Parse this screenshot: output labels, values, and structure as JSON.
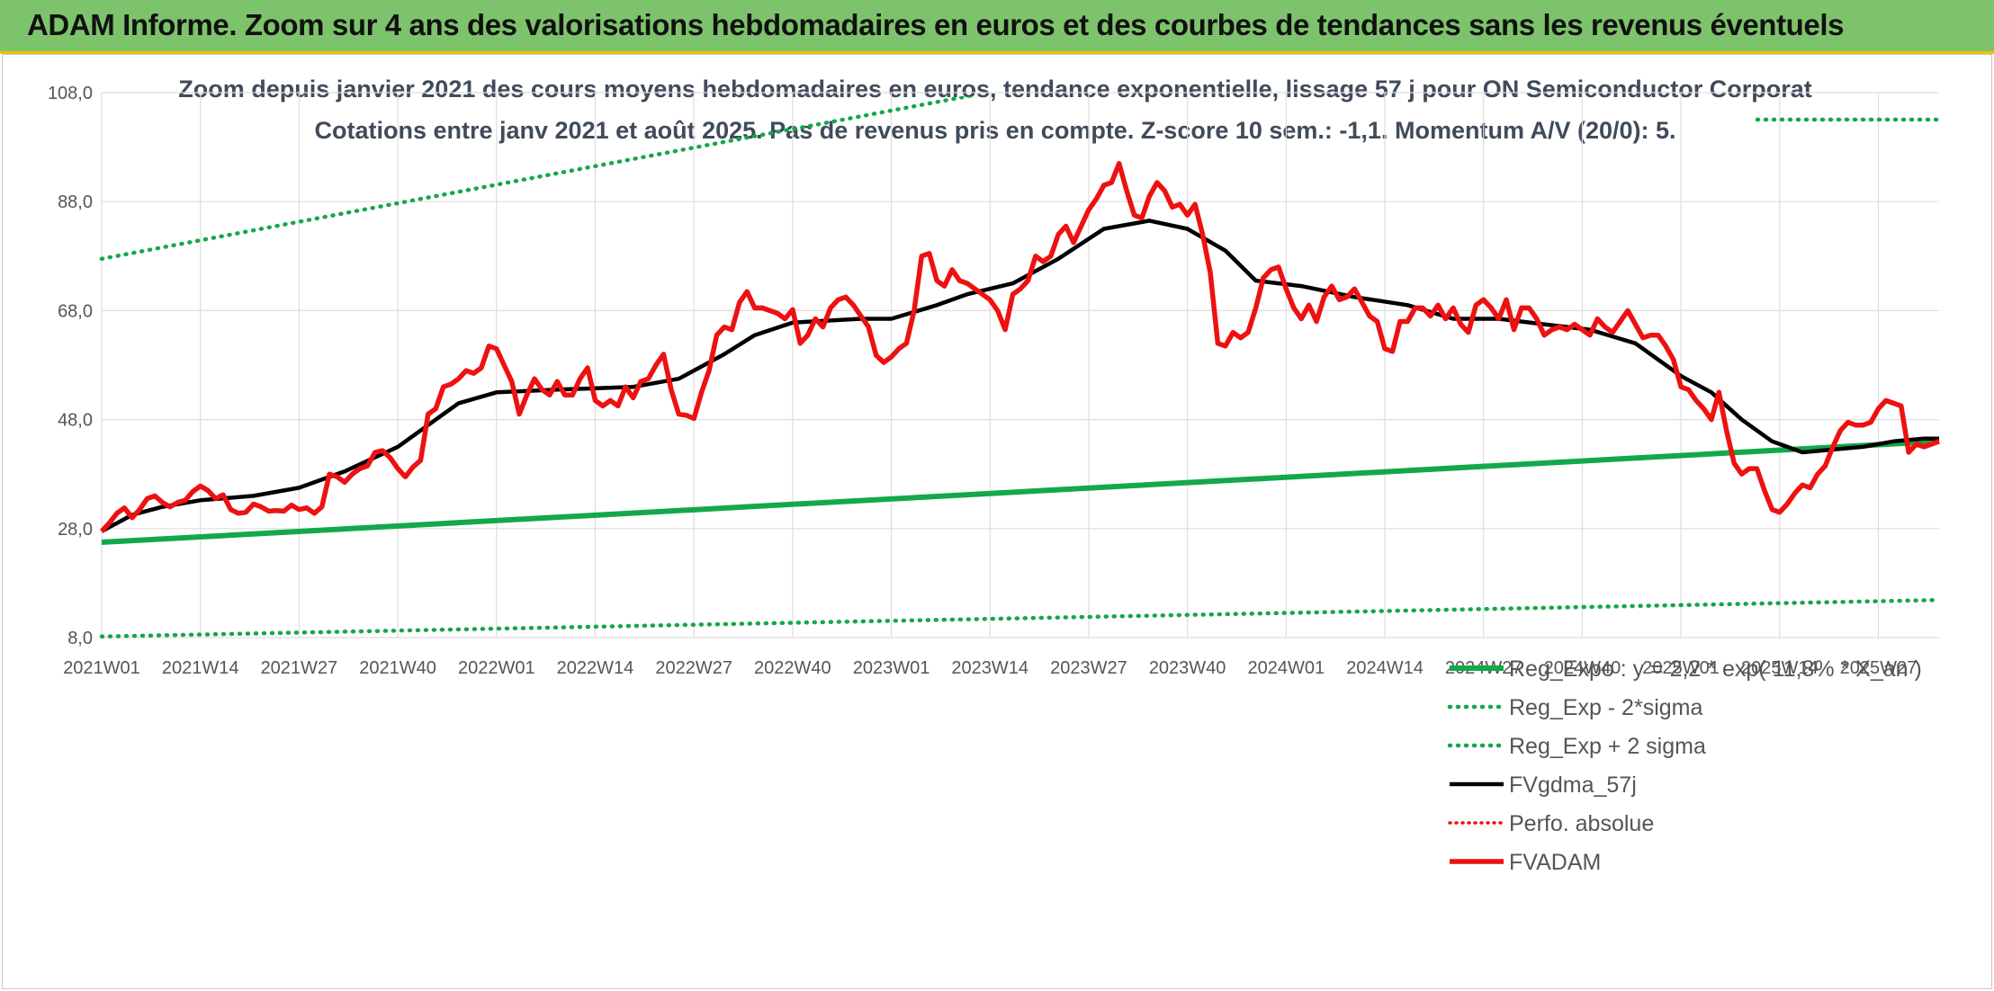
{
  "header": {
    "title": "ADAM Informe. Zoom sur 4 ans des valorisations hebdomadaires en euros et des courbes de tendances sans les revenus éventuels"
  },
  "colors": {
    "header_bg": "#7dc36b",
    "header_border": "#f2c200",
    "trend_green": "#13a84a",
    "fvadam_red": "#ee1111",
    "fvgdma_black": "#000000",
    "perfo_red": "#ee1111",
    "grid": "#dddddd"
  },
  "chart_data": {
    "type": "line",
    "title": "Zoom depuis janvier 2021 des cours moyens hebdomadaires en euros, tendance exponentielle, lissage 57 j pour ON Semiconductor Corporat",
    "subtitle": "Cotations entre janv 2021 et août 2025. Pas de revenus pris en compte. Z-score 10 sem.: -1,1. Momentum A/V (20/0): 5.",
    "ylim": [
      8,
      108
    ],
    "yticks": [
      "108,0",
      "88,0",
      "68,0",
      "48,0",
      "28,0",
      "8,0"
    ],
    "ytick_values": [
      108,
      88,
      68,
      48,
      28,
      8
    ],
    "x_count": 243,
    "xticks": [
      "2021W01",
      "2021W14",
      "2021W27",
      "2021W40",
      "2022W01",
      "2022W14",
      "2022W27",
      "2022W40",
      "2023W01",
      "2023W14",
      "2023W27",
      "2023W40",
      "2024W01",
      "2024W14",
      "2024W27",
      "2024W40",
      "2025W01",
      "2025W14",
      "2025W27"
    ],
    "xtick_index": [
      0,
      13,
      26,
      39,
      52,
      65,
      78,
      91,
      104,
      117,
      130,
      143,
      156,
      169,
      182,
      195,
      208,
      221,
      234
    ],
    "grid": true,
    "legend_position": "bottom-right",
    "series": [
      {
        "name": "Reg_Expo : y = 2,2 * exp( 11,8% * X_an )",
        "kind": "trend",
        "points": [
          [
            0,
            25.5
          ],
          [
            242,
            44.0
          ]
        ]
      },
      {
        "name": "Reg_Exp - 2*sigma",
        "kind": "band_low",
        "points": [
          [
            0,
            8.2
          ],
          [
            242,
            14.9
          ]
        ]
      },
      {
        "name": "Reg_Exp + 2 sigma",
        "kind": "band_high",
        "points": [
          [
            0,
            77.5
          ],
          [
            242,
            140.8
          ]
        ]
      },
      {
        "name": "FVgdma_57j",
        "kind": "smooth",
        "points": [
          [
            0,
            27.5
          ],
          [
            4,
            30.5
          ],
          [
            8,
            32
          ],
          [
            13,
            33.2
          ],
          [
            20,
            34
          ],
          [
            26,
            35.5
          ],
          [
            32,
            38.5
          ],
          [
            39,
            43
          ],
          [
            44,
            48
          ],
          [
            47,
            51
          ],
          [
            52,
            53
          ],
          [
            60,
            53.5
          ],
          [
            70,
            54
          ],
          [
            76,
            55.5
          ],
          [
            82,
            60
          ],
          [
            86,
            63.5
          ],
          [
            91,
            65.8
          ],
          [
            100,
            66.5
          ],
          [
            104,
            66.5
          ],
          [
            110,
            69
          ],
          [
            114,
            71
          ],
          [
            120,
            73
          ],
          [
            126,
            77.5
          ],
          [
            132,
            83
          ],
          [
            138,
            84.5
          ],
          [
            143,
            83
          ],
          [
            148,
            79
          ],
          [
            152,
            73.5
          ],
          [
            158,
            72.5
          ],
          [
            165,
            70.5
          ],
          [
            172,
            69
          ],
          [
            178,
            66.5
          ],
          [
            184,
            66.5
          ],
          [
            190,
            65.5
          ],
          [
            196,
            64.5
          ],
          [
            202,
            62
          ],
          [
            208,
            56
          ],
          [
            212,
            53
          ],
          [
            216,
            48
          ],
          [
            220,
            44
          ],
          [
            224,
            42
          ],
          [
            228,
            42.5
          ],
          [
            232,
            43
          ],
          [
            236,
            44
          ],
          [
            240,
            44.5
          ],
          [
            242,
            44.5
          ]
        ]
      },
      {
        "name": "Perfo. absolue",
        "kind": "perfo",
        "points": []
      },
      {
        "name": "FVADAM",
        "kind": "price",
        "points": [
          [
            0,
            27.5
          ],
          [
            1,
            29
          ],
          [
            2,
            30.8
          ],
          [
            3,
            31.8
          ],
          [
            4,
            30
          ],
          [
            5,
            31.5
          ],
          [
            6,
            33.5
          ],
          [
            7,
            34
          ],
          [
            8,
            32.8
          ],
          [
            9,
            32
          ],
          [
            10,
            32.8
          ],
          [
            11,
            33.2
          ],
          [
            12,
            34.8
          ],
          [
            13,
            35.8
          ],
          [
            14,
            35
          ],
          [
            15,
            33.5
          ],
          [
            16,
            34.2
          ],
          [
            17,
            31.5
          ],
          [
            18,
            30.8
          ],
          [
            19,
            31
          ],
          [
            20,
            32.5
          ],
          [
            21,
            32
          ],
          [
            22,
            31.2
          ],
          [
            23,
            31.3
          ],
          [
            24,
            31.2
          ],
          [
            25,
            32.3
          ],
          [
            26,
            31.5
          ],
          [
            27,
            31.8
          ],
          [
            28,
            30.8
          ],
          [
            29,
            32
          ],
          [
            30,
            38
          ],
          [
            31,
            37.5
          ],
          [
            32,
            36.5
          ],
          [
            33,
            38
          ],
          [
            34,
            39
          ],
          [
            35,
            39.5
          ],
          [
            36,
            42
          ],
          [
            37,
            42.3
          ],
          [
            38,
            41
          ],
          [
            39,
            39
          ],
          [
            40,
            37.5
          ],
          [
            41,
            39.3
          ],
          [
            42,
            40.5
          ],
          [
            43,
            49
          ],
          [
            44,
            50
          ],
          [
            45,
            54
          ],
          [
            46,
            54.5
          ],
          [
            47,
            55.5
          ],
          [
            48,
            57
          ],
          [
            49,
            56.5
          ],
          [
            50,
            57.5
          ],
          [
            51,
            61.5
          ],
          [
            52,
            61
          ],
          [
            53,
            58
          ],
          [
            54,
            55
          ],
          [
            55,
            49
          ],
          [
            56,
            52.5
          ],
          [
            57,
            55.5
          ],
          [
            58,
            53.5
          ],
          [
            59,
            52.5
          ],
          [
            60,
            55
          ],
          [
            61,
            52.5
          ],
          [
            62,
            52.5
          ],
          [
            63,
            55.5
          ],
          [
            64,
            57.5
          ],
          [
            65,
            51.5
          ],
          [
            66,
            50.5
          ],
          [
            67,
            51.5
          ],
          [
            68,
            50.5
          ],
          [
            69,
            54
          ],
          [
            70,
            52
          ],
          [
            71,
            55
          ],
          [
            72,
            55.5
          ],
          [
            73,
            58
          ],
          [
            74,
            60
          ],
          [
            75,
            53.5
          ],
          [
            76,
            49
          ],
          [
            77,
            48.8
          ],
          [
            78,
            48.2
          ],
          [
            79,
            53
          ],
          [
            80,
            57
          ],
          [
            81,
            63.5
          ],
          [
            82,
            65
          ],
          [
            83,
            64.5
          ],
          [
            84,
            69.5
          ],
          [
            85,
            71.5
          ],
          [
            86,
            68.5
          ],
          [
            87,
            68.5
          ],
          [
            88,
            68
          ],
          [
            89,
            67.5
          ],
          [
            90,
            66.5
          ],
          [
            91,
            68.2
          ],
          [
            92,
            62
          ],
          [
            93,
            63.5
          ],
          [
            94,
            66.5
          ],
          [
            95,
            65
          ],
          [
            96,
            68.5
          ],
          [
            97,
            70
          ],
          [
            98,
            70.5
          ],
          [
            99,
            69
          ],
          [
            100,
            67
          ],
          [
            101,
            65
          ],
          [
            102,
            59.8
          ],
          [
            103,
            58.5
          ],
          [
            104,
            59.5
          ],
          [
            105,
            61
          ],
          [
            106,
            62
          ],
          [
            107,
            68
          ],
          [
            108,
            78
          ],
          [
            109,
            78.5
          ],
          [
            110,
            73.5
          ],
          [
            111,
            72.5
          ],
          [
            112,
            75.5
          ],
          [
            113,
            73.5
          ],
          [
            114,
            73
          ],
          [
            115,
            72
          ],
          [
            116,
            71
          ],
          [
            117,
            70
          ],
          [
            118,
            68
          ],
          [
            119,
            64.5
          ],
          [
            120,
            71
          ],
          [
            121,
            72
          ],
          [
            122,
            73.5
          ],
          [
            123,
            78
          ],
          [
            124,
            77
          ],
          [
            125,
            78
          ],
          [
            126,
            82
          ],
          [
            127,
            83.5
          ],
          [
            128,
            80.5
          ],
          [
            129,
            83.5
          ],
          [
            130,
            86.5
          ],
          [
            131,
            88.5
          ],
          [
            132,
            91
          ],
          [
            133,
            91.5
          ],
          [
            134,
            95
          ],
          [
            135,
            90
          ],
          [
            136,
            85.5
          ],
          [
            137,
            85
          ],
          [
            138,
            89
          ],
          [
            139,
            91.5
          ],
          [
            140,
            90
          ],
          [
            141,
            87
          ],
          [
            142,
            87.5
          ],
          [
            143,
            85.5
          ],
          [
            144,
            87.5
          ],
          [
            145,
            82
          ],
          [
            146,
            75
          ],
          [
            147,
            62
          ],
          [
            148,
            61.5
          ],
          [
            149,
            64
          ],
          [
            150,
            63
          ],
          [
            151,
            64
          ],
          [
            152,
            68.5
          ],
          [
            153,
            74
          ],
          [
            154,
            75.5
          ],
          [
            155,
            76
          ],
          [
            156,
            72
          ],
          [
            157,
            68.5
          ],
          [
            158,
            66.5
          ],
          [
            159,
            69
          ],
          [
            160,
            66
          ],
          [
            161,
            70.5
          ],
          [
            162,
            72.5
          ],
          [
            163,
            70
          ],
          [
            164,
            70.5
          ],
          [
            165,
            72
          ],
          [
            166,
            69.5
          ],
          [
            167,
            67
          ],
          [
            168,
            66
          ],
          [
            169,
            61
          ],
          [
            170,
            60.5
          ],
          [
            171,
            66
          ],
          [
            172,
            66
          ],
          [
            173,
            68.5
          ],
          [
            174,
            68.5
          ],
          [
            175,
            67
          ],
          [
            176,
            69
          ],
          [
            177,
            66.5
          ],
          [
            178,
            68.5
          ],
          [
            179,
            65.5
          ],
          [
            180,
            64
          ],
          [
            181,
            69
          ],
          [
            182,
            70
          ],
          [
            183,
            68.5
          ],
          [
            184,
            66.5
          ],
          [
            185,
            70
          ],
          [
            186,
            64.5
          ],
          [
            187,
            68.5
          ],
          [
            188,
            68.5
          ],
          [
            189,
            66.5
          ],
          [
            190,
            63.5
          ],
          [
            191,
            64.5
          ],
          [
            192,
            65
          ],
          [
            193,
            64.5
          ],
          [
            194,
            65.5
          ],
          [
            195,
            64.5
          ],
          [
            196,
            63.5
          ],
          [
            197,
            66.5
          ],
          [
            198,
            65
          ],
          [
            199,
            64
          ],
          [
            200,
            66
          ],
          [
            201,
            68
          ],
          [
            202,
            65.5
          ],
          [
            203,
            63
          ],
          [
            204,
            63.5
          ],
          [
            205,
            63.5
          ],
          [
            206,
            61.5
          ],
          [
            207,
            59
          ],
          [
            208,
            54
          ],
          [
            209,
            53.5
          ],
          [
            210,
            51.5
          ],
          [
            211,
            50
          ],
          [
            212,
            48
          ],
          [
            213,
            53
          ],
          [
            214,
            46
          ],
          [
            215,
            40
          ],
          [
            216,
            38
          ],
          [
            217,
            39
          ],
          [
            218,
            39
          ],
          [
            219,
            35
          ],
          [
            220,
            31.5
          ],
          [
            221,
            31
          ],
          [
            222,
            32.5
          ],
          [
            223,
            34.5
          ],
          [
            224,
            36
          ],
          [
            225,
            35.5
          ],
          [
            226,
            38
          ],
          [
            227,
            39.5
          ],
          [
            228,
            43
          ],
          [
            229,
            46
          ],
          [
            230,
            47.5
          ],
          [
            231,
            47
          ],
          [
            232,
            47
          ],
          [
            233,
            47.5
          ],
          [
            234,
            50
          ],
          [
            235,
            51.5
          ],
          [
            236,
            51
          ],
          [
            237,
            50.5
          ],
          [
            238,
            42
          ],
          [
            239,
            43.5
          ],
          [
            240,
            43
          ],
          [
            241,
            43.5
          ],
          [
            242,
            44
          ]
        ]
      }
    ]
  }
}
